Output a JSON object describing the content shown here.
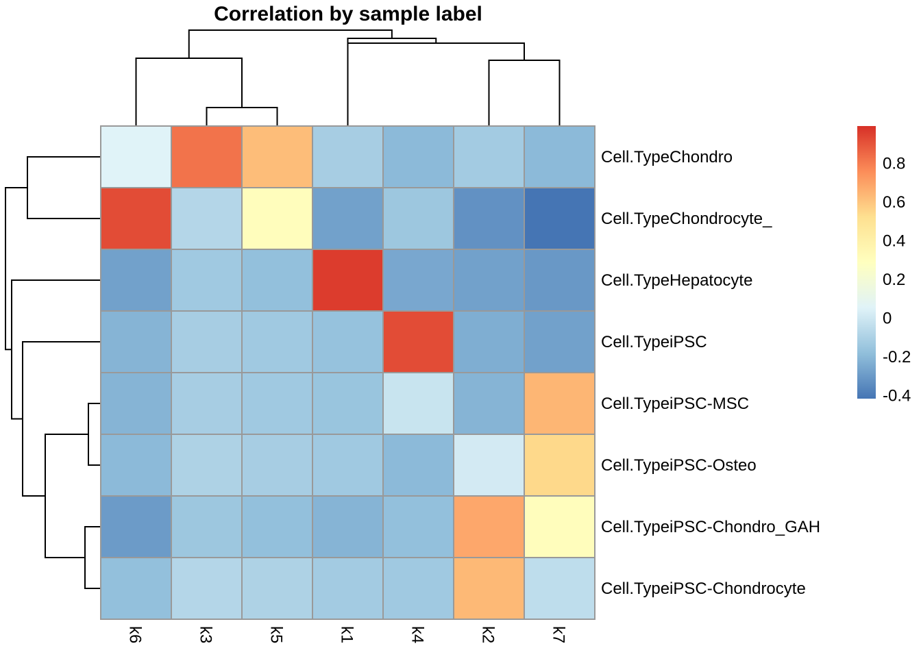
{
  "chart_data": {
    "type": "heatmap",
    "title": "Correlation by sample label",
    "rows": [
      "Cell.TypeChondro",
      "Cell.TypeChondrocyte_",
      "Cell.TypeHepatocyte",
      "Cell.TypeiPSC",
      "Cell.TypeiPSC-MSC",
      "Cell.TypeiPSC-Osteo",
      "Cell.TypeiPSC-Chondro_GAH",
      "Cell.TypeiPSC-Chondrocyte"
    ],
    "columns": [
      "k6",
      "k3",
      "k5",
      "k1",
      "k4",
      "k2",
      "k7"
    ],
    "values": [
      [
        0.05,
        0.82,
        0.62,
        -0.12,
        -0.2,
        -0.13,
        -0.2
      ],
      [
        0.92,
        -0.08,
        0.3,
        -0.28,
        -0.15,
        -0.33,
        -0.42
      ],
      [
        -0.28,
        -0.14,
        -0.18,
        0.96,
        -0.26,
        -0.28,
        -0.31
      ],
      [
        -0.22,
        -0.12,
        -0.14,
        -0.17,
        0.92,
        -0.24,
        -0.28
      ],
      [
        -0.22,
        -0.12,
        -0.14,
        -0.16,
        -0.02,
        -0.22,
        0.64
      ],
      [
        -0.2,
        -0.1,
        -0.12,
        -0.14,
        -0.2,
        0.01,
        0.54
      ],
      [
        -0.3,
        -0.15,
        -0.18,
        -0.22,
        -0.18,
        0.68,
        0.3
      ],
      [
        -0.18,
        -0.08,
        -0.1,
        -0.13,
        -0.14,
        0.63,
        -0.05
      ]
    ],
    "color_scale": {
      "min": -0.42,
      "max": 0.99,
      "stops": [
        "#4575B4",
        "#91BFDB",
        "#E0F3F8",
        "#FFFFBF",
        "#FEE090",
        "#FC8D59",
        "#D73027"
      ]
    },
    "legend": {
      "position": "right",
      "ticks": [
        "0.8",
        "0.6",
        "0.4",
        "0.2",
        "0",
        "-0.2",
        "-0.4"
      ],
      "tick_values": [
        0.8,
        0.6,
        0.4,
        0.2,
        0,
        -0.2,
        -0.4
      ]
    }
  }
}
